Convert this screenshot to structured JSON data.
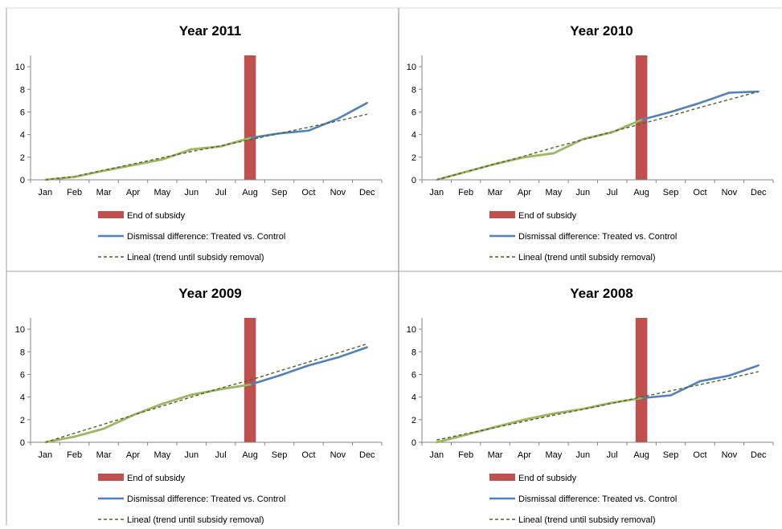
{
  "chart_data": [
    {
      "type": "line",
      "title": "Year 2011",
      "categories": [
        "Jan",
        "Feb",
        "Mar",
        "Apr",
        "May",
        "Jun",
        "Jul",
        "Aug",
        "Sep",
        "Oct",
        "Nov",
        "Dec"
      ],
      "yticks": [
        "0",
        "2",
        "4",
        "6",
        "8",
        "10"
      ],
      "ylim": [
        0,
        11
      ],
      "subsidy_bar": {
        "name": "End of subsidy",
        "category": "Aug",
        "value": 11
      },
      "series": [
        {
          "name": "Dismissal difference: Treated vs. Control",
          "values": [
            0,
            0.25,
            0.8,
            1.3,
            1.8,
            2.7,
            2.95,
            3.7,
            4.1,
            4.35,
            5.4,
            6.8
          ]
        },
        {
          "name": "Lineal (trend until subsidy removal)",
          "values": [
            0,
            0.3,
            0.85,
            1.4,
            1.95,
            2.5,
            3.0,
            3.55,
            4.1,
            4.65,
            5.2,
            5.8
          ]
        }
      ],
      "legend": [
        "End of subsidy",
        "Dismissal difference: Treated vs. Control",
        "Lineal (trend until subsidy removal)"
      ],
      "legend_position": "bottom",
      "colors": {
        "bar": "#C0504D",
        "series": "#4F81BD",
        "highlight": "#9BBB59",
        "trend": "#4F6228"
      }
    },
    {
      "type": "line",
      "title": "Year 2010",
      "categories": [
        "Jan",
        "Feb",
        "Mar",
        "Apr",
        "May",
        "Jun",
        "Jul",
        "Aug",
        "Sep",
        "Oct",
        "Nov",
        "Dec"
      ],
      "yticks": [
        "0",
        "2",
        "4",
        "6",
        "8",
        "10"
      ],
      "ylim": [
        0,
        11
      ],
      "subsidy_bar": {
        "name": "End of subsidy",
        "category": "Aug",
        "value": 11
      },
      "series": [
        {
          "name": "Dismissal difference: Treated vs. Control",
          "values": [
            0,
            0.7,
            1.4,
            2.0,
            2.35,
            3.6,
            4.2,
            5.3,
            6.0,
            6.8,
            7.7,
            7.8
          ]
        },
        {
          "name": "Lineal (trend until subsidy removal)",
          "values": [
            0,
            0.7,
            1.4,
            2.1,
            2.85,
            3.55,
            4.25,
            4.95,
            5.65,
            6.4,
            7.1,
            7.8
          ]
        }
      ],
      "legend": [
        "End of subsidy",
        "Dismissal difference: Treated vs. Control",
        "Lineal (trend until subsidy removal)"
      ],
      "legend_position": "bottom",
      "colors": {
        "bar": "#C0504D",
        "series": "#4F81BD",
        "highlight": "#9BBB59",
        "trend": "#4F6228"
      }
    },
    {
      "type": "line",
      "title": "Year 2009",
      "categories": [
        "Jan",
        "Feb",
        "Mar",
        "Apr",
        "May",
        "Jun",
        "Jul",
        "Aug",
        "Sep",
        "Oct",
        "Nov",
        "Dec"
      ],
      "yticks": [
        "0",
        "2",
        "4",
        "6",
        "8",
        "10"
      ],
      "ylim": [
        0,
        11
      ],
      "subsidy_bar": {
        "name": "End of subsidy",
        "category": "Aug",
        "value": 11
      },
      "series": [
        {
          "name": "Dismissal difference: Treated vs. Control",
          "values": [
            0,
            0.5,
            1.2,
            2.4,
            3.4,
            4.2,
            4.7,
            5.1,
            5.9,
            6.8,
            7.5,
            8.4
          ]
        },
        {
          "name": "Lineal (trend until subsidy removal)",
          "values": [
            0,
            0.8,
            1.6,
            2.4,
            3.2,
            4.0,
            4.8,
            5.5,
            6.3,
            7.1,
            7.9,
            8.7
          ]
        }
      ],
      "legend": [
        "End of subsidy",
        "Dismissal difference: Treated vs. Control",
        "Lineal (trend until subsidy removal)"
      ],
      "legend_position": "bottom",
      "colors": {
        "bar": "#C0504D",
        "series": "#4F81BD",
        "highlight": "#9BBB59",
        "trend": "#4F6228"
      }
    },
    {
      "type": "line",
      "title": "Year 2008",
      "categories": [
        "Jan",
        "Feb",
        "Mar",
        "Apr",
        "May",
        "Jun",
        "Jul",
        "Aug",
        "Sep",
        "Oct",
        "Nov",
        "Dec"
      ],
      "yticks": [
        "0",
        "2",
        "4",
        "6",
        "8",
        "10"
      ],
      "ylim": [
        0,
        11
      ],
      "subsidy_bar": {
        "name": "End of subsidy",
        "category": "Aug",
        "value": 11
      },
      "series": [
        {
          "name": "Dismissal difference: Treated vs. Control",
          "values": [
            0,
            0.65,
            1.35,
            2.0,
            2.55,
            2.95,
            3.5,
            3.9,
            4.15,
            5.4,
            5.9,
            6.8
          ]
        },
        {
          "name": "Lineal (trend until subsidy removal)",
          "values": [
            0.2,
            0.75,
            1.3,
            1.85,
            2.4,
            2.9,
            3.45,
            4.0,
            4.55,
            5.1,
            5.65,
            6.25
          ]
        }
      ],
      "legend": [
        "End of subsidy",
        "Dismissal difference: Treated vs. Control",
        "Lineal (trend until subsidy removal)"
      ],
      "legend_position": "bottom",
      "colors": {
        "bar": "#C0504D",
        "series": "#4F81BD",
        "highlight": "#9BBB59",
        "trend": "#4F6228"
      }
    }
  ]
}
